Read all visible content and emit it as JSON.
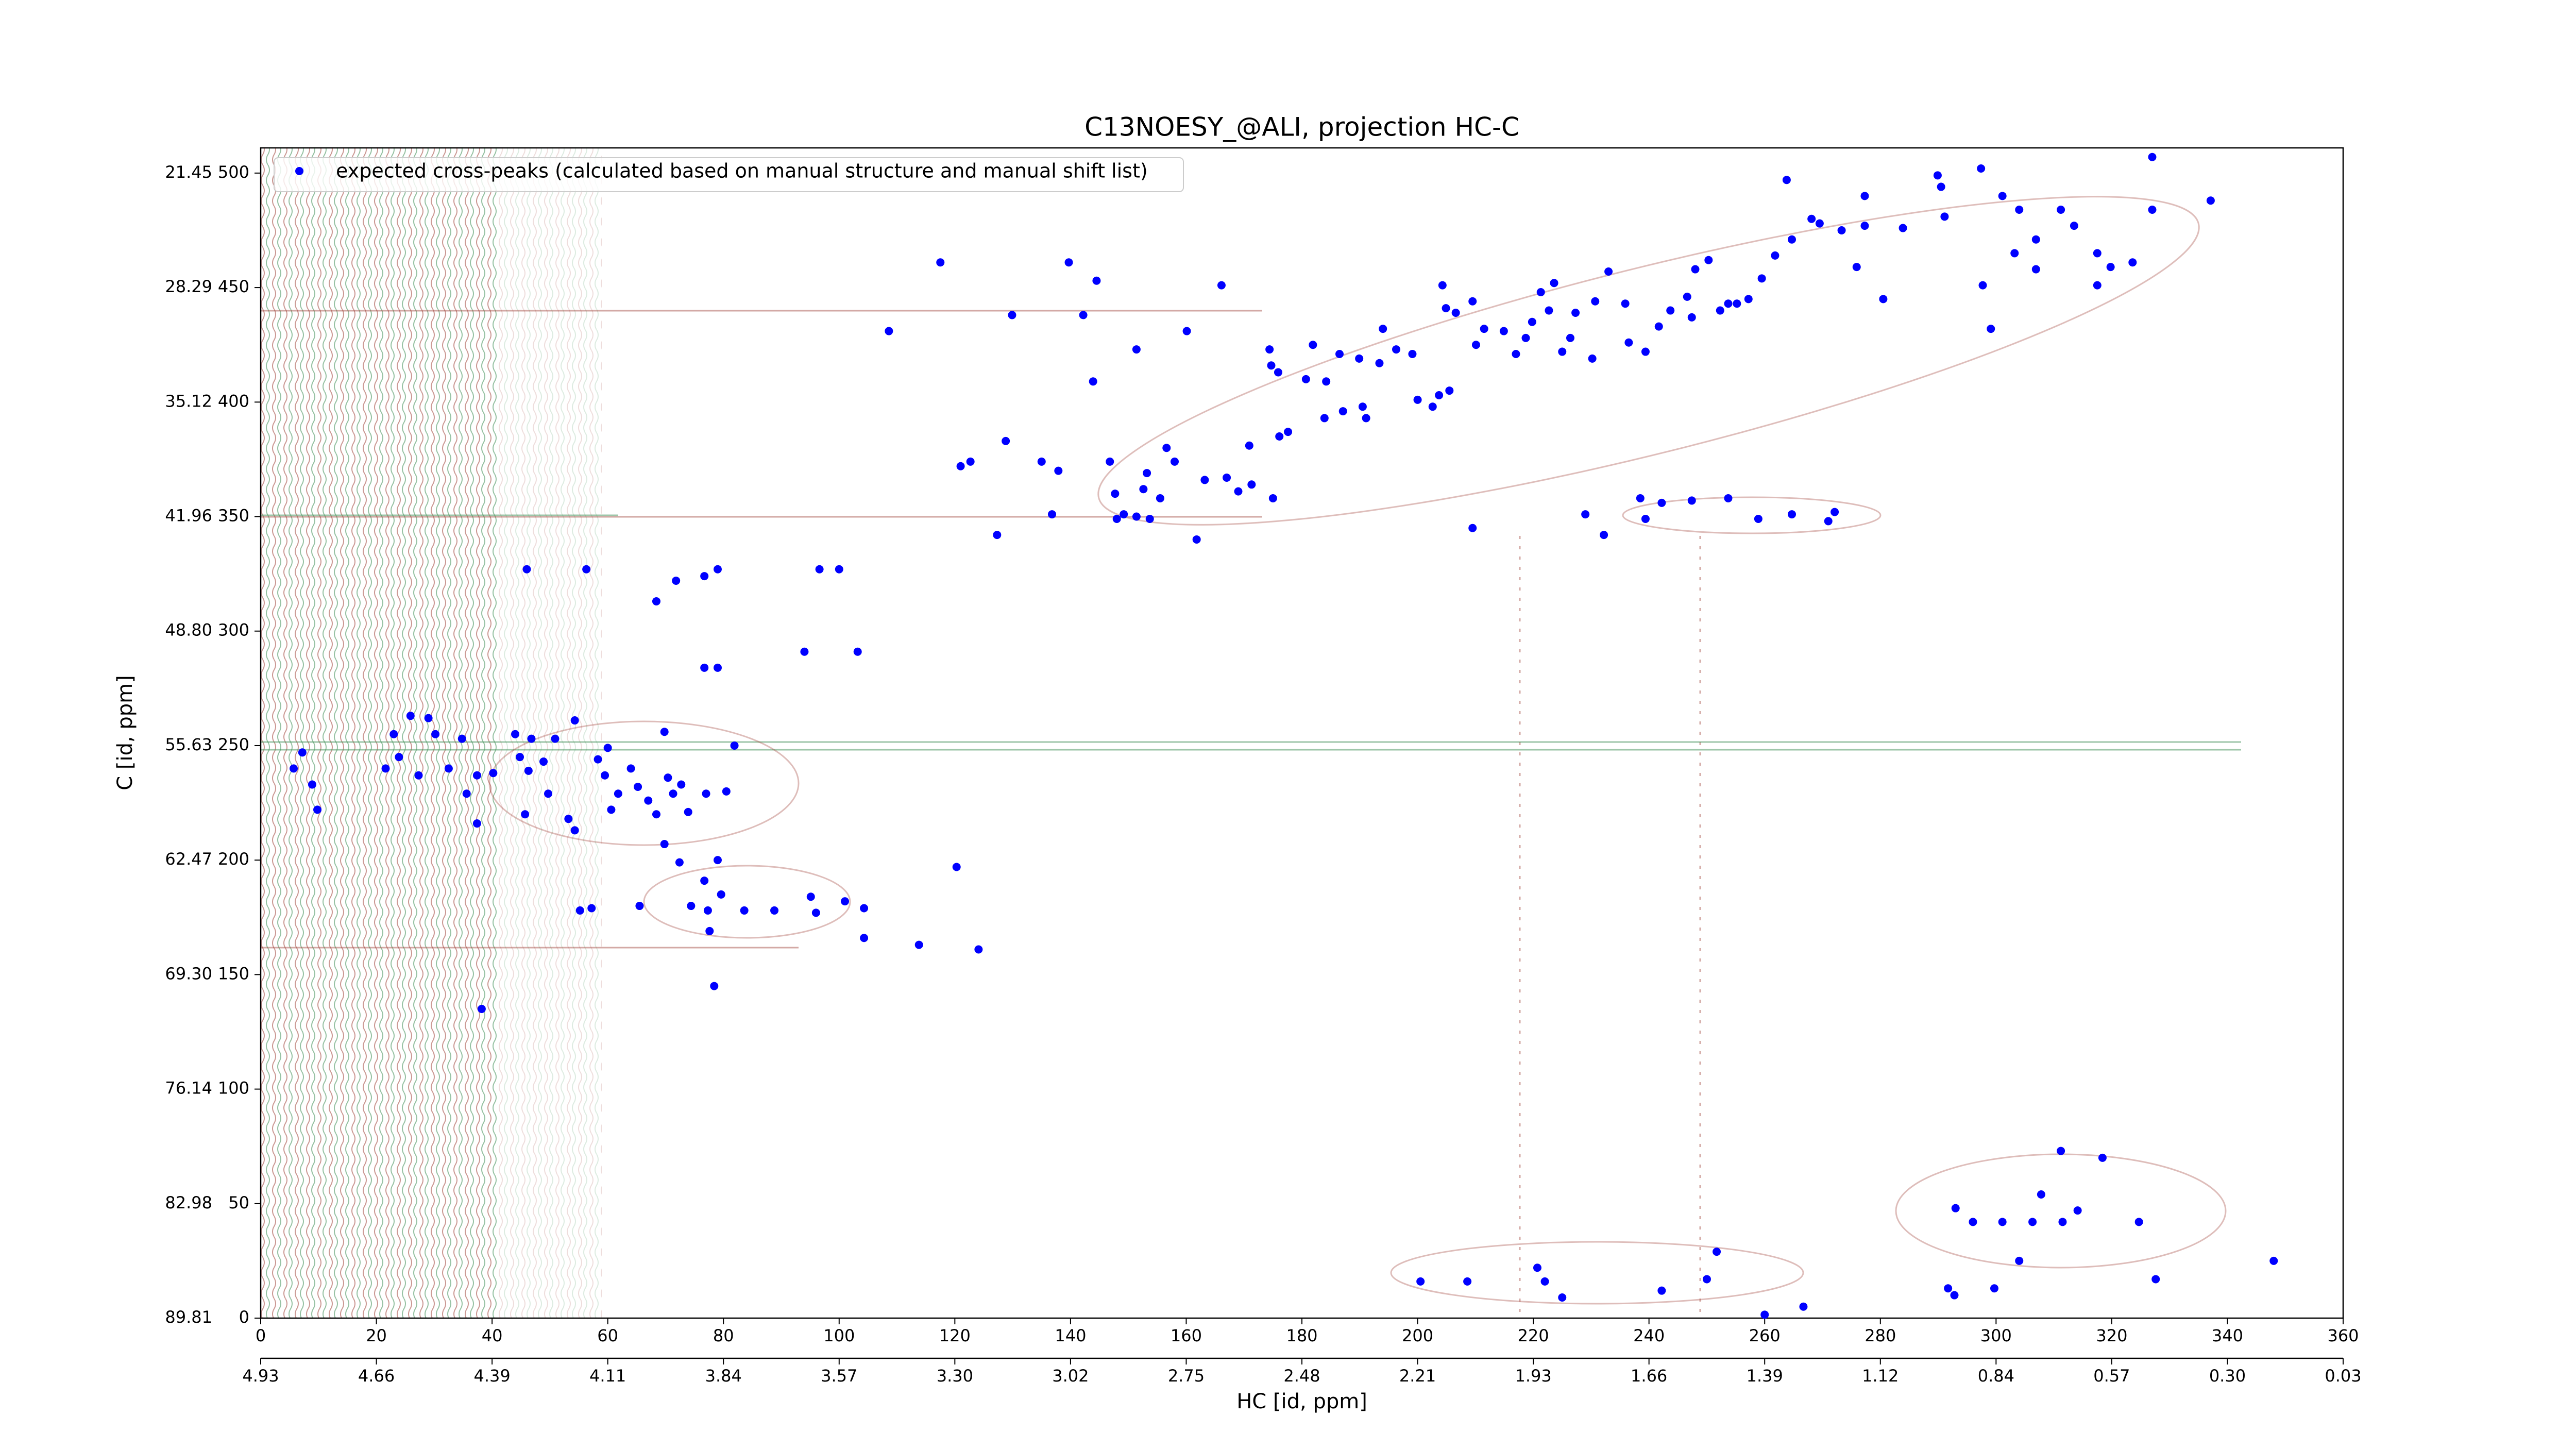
{
  "chart_data": {
    "type": "scatter",
    "title": "C13NOESY_@ALI, projection HC-C",
    "x_label": "HC [id, ppm]",
    "y_label": "C [id, ppm]",
    "xlim": [
      0,
      360
    ],
    "ylim": [
      0,
      511
    ],
    "xticks": [
      0,
      20,
      40,
      60,
      80,
      100,
      120,
      140,
      160,
      180,
      200,
      220,
      240,
      260,
      280,
      300,
      320,
      340,
      360
    ],
    "yticks": [
      0,
      50,
      100,
      150,
      200,
      250,
      300,
      350,
      400,
      450,
      500
    ],
    "x_ppm_ticks": [
      {
        "value": 0,
        "label": "4.93"
      },
      {
        "value": 20,
        "label": "4.66"
      },
      {
        "value": 40,
        "label": "4.39"
      },
      {
        "value": 60,
        "label": "4.11"
      },
      {
        "value": 80,
        "label": "3.84"
      },
      {
        "value": 100,
        "label": "3.57"
      },
      {
        "value": 120,
        "label": "3.30"
      },
      {
        "value": 140,
        "label": "3.02"
      },
      {
        "value": 160,
        "label": "2.75"
      },
      {
        "value": 180,
        "label": "2.48"
      },
      {
        "value": 200,
        "label": "2.21"
      },
      {
        "value": 220,
        "label": "1.93"
      },
      {
        "value": 240,
        "label": "1.66"
      },
      {
        "value": 260,
        "label": "1.39"
      },
      {
        "value": 280,
        "label": "1.12"
      },
      {
        "value": 300,
        "label": "0.84"
      },
      {
        "value": 320,
        "label": "0.57"
      },
      {
        "value": 340,
        "label": "0.30"
      },
      {
        "value": 360,
        "label": "0.03"
      }
    ],
    "y_ppm_ticks": [
      {
        "value": 0,
        "label": "89.81"
      },
      {
        "value": 50,
        "label": "82.98"
      },
      {
        "value": 100,
        "label": "76.14"
      },
      {
        "value": 150,
        "label": "69.30"
      },
      {
        "value": 200,
        "label": "62.47"
      },
      {
        "value": 250,
        "label": "55.63"
      },
      {
        "value": 300,
        "label": "48.80"
      },
      {
        "value": 350,
        "label": "41.96"
      },
      {
        "value": 400,
        "label": "35.12"
      },
      {
        "value": 450,
        "label": "28.29"
      },
      {
        "value": 500,
        "label": "21.45"
      }
    ],
    "legend": "upper left",
    "series": [
      {
        "name": "expected cross-peaks (calculated based on manual structure and manual shift list)",
        "color": "#0000ff",
        "x": [
          7.2,
          5.7,
          8.9,
          9.8,
          23,
          25.9,
          23.9,
          21.6,
          29,
          30.2,
          27.3,
          34.8,
          32.5,
          37.4,
          35.6,
          40.2,
          37.4,
          44,
          46.8,
          44.8,
          46.3,
          49.7,
          45.7,
          54.3,
          50.9,
          58.3,
          59.5,
          61.8,
          60.6,
          64,
          65.2,
          67,
          68.4,
          70.4,
          72.7,
          73.9,
          69.8,
          77,
          80.5,
          81.9,
          53.2,
          54.3,
          48.9,
          60,
          71.3,
          69.8,
          72.4,
          79,
          76.7,
          79.6,
          55.2,
          57.2,
          65.5,
          74.4,
          77.3,
          77.6,
          83.6,
          88.8,
          95.1,
          96,
          101,
          104.3,
          104.3,
          113.8,
          124.1,
          120.3,
          78.4,
          38.2,
          46,
          56.3,
          71.8,
          76.7,
          79,
          68.4,
          96.6,
          100,
          76.7,
          79,
          94,
          103.2,
          108.6,
          117.5,
          121,
          122.7,
          128.8,
          127.3,
          129.9,
          135,
          137.9,
          139.7,
          142.2,
          144.5,
          143.9,
          136.8,
          146.8,
          147.7,
          148,
          149.2,
          151.4,
          153.7,
          155.5,
          156.6,
          158,
          153.2,
          152.6,
          151.4,
          160.1,
          161.8,
          166.1,
          163.2,
          167,
          169,
          171.3,
          175,
          170.9,
          176.1,
          177.6,
          174.4,
          174.7,
          175.9,
          180.7,
          184.2,
          181.9,
          186.5,
          183.9,
          187.1,
          190.5,
          191.1,
          189.9,
          193.4,
          194,
          196.3,
          199.1,
          200,
          202.6,
          203.7,
          205.5,
          204.9,
          204.3,
          206.6,
          209.5,
          211.5,
          210.1,
          214.9,
          217,
          218.7,
          219.8,
          221.3,
          222.7,
          223.6,
          225,
          226.4,
          230.2,
          227.3,
          230.7,
          233,
          235.9,
          236.5,
          239.4,
          241.7,
          243.7,
          246.6,
          248,
          250.3,
          247.4,
          252.3,
          253.7,
          255.2,
          257.2,
          259.5,
          261.8,
          264.7,
          268.1,
          269.5,
          273.3,
          277.3,
          277.3,
          283.9,
          289.9,
          290.5,
          291.1,
          297.4,
          301.1,
          304,
          306.9,
          311.2,
          313.5,
          317.5,
          317.5,
          319.8,
          323.6,
          327,
          327,
          337.1,
          263.8,
          275.9,
          280.5,
          297.7,
          299.1,
          303.2,
          306.9,
          209.5,
          229,
          232.2,
          239.4,
          242.2,
          247.4,
          253.7,
          258.9,
          264.7,
          271,
          272.1,
          238.5,
          200.5,
          208.6,
          220.7,
          222,
          225,
          242.2,
          251.7,
          250,
          260,
          266.7,
          291.7,
          292.8,
          299.7,
          304,
          306.3,
          311.5,
          307.8,
          314.1,
          311.2,
          318.4,
          327.6,
          324.7,
          348,
          301.1,
          296,
          293
        ],
        "values": [
          247,
          240,
          233,
          222,
          255,
          263,
          245,
          240,
          262,
          255,
          237,
          253,
          240,
          237,
          229,
          238,
          216,
          255,
          253,
          245,
          239,
          229,
          220,
          261,
          253,
          244,
          237,
          229,
          222,
          240,
          232,
          226,
          220,
          236,
          233,
          221,
          256,
          229,
          230,
          250,
          218,
          213,
          243,
          249,
          229,
          207,
          199,
          200,
          191,
          185,
          178,
          179,
          180,
          180,
          178,
          169,
          178,
          178,
          184,
          177,
          182,
          179,
          166,
          163,
          161,
          197,
          145,
          135,
          327,
          327,
          322,
          324,
          327,
          313,
          327,
          327,
          284,
          284,
          291,
          291,
          431,
          461,
          372,
          374,
          383,
          342,
          438,
          374,
          370,
          461,
          438,
          453,
          409,
          351,
          374,
          360,
          349,
          351,
          350,
          349,
          358,
          380,
          374,
          369,
          362,
          423,
          431,
          340,
          451,
          366,
          367,
          361,
          364,
          358,
          381,
          385,
          387,
          423,
          416,
          413,
          410,
          409,
          425,
          421,
          393,
          396,
          398,
          393,
          419,
          417,
          432,
          423,
          421,
          401,
          398,
          403,
          405,
          441,
          451,
          439,
          444,
          432,
          425,
          431,
          421,
          428,
          435,
          448,
          440,
          452,
          422,
          428,
          419,
          439,
          444,
          457,
          443,
          426,
          422,
          433,
          440,
          446,
          458,
          462,
          437,
          440,
          443,
          443,
          445,
          454,
          464,
          471,
          480,
          478,
          475,
          490,
          477,
          476,
          499,
          494,
          481,
          502,
          490,
          484,
          471,
          484,
          477,
          465,
          451,
          459,
          461,
          507,
          484,
          488,
          497,
          459,
          445,
          451,
          432,
          465,
          458,
          345,
          351,
          342,
          349,
          356,
          357,
          358,
          349,
          351,
          348,
          352,
          358,
          16,
          16,
          22,
          16,
          9,
          12,
          29,
          17,
          1.5,
          5,
          13,
          10,
          13,
          25,
          42,
          42,
          54,
          47,
          73,
          70,
          17,
          42,
          25,
          42,
          42,
          48
        ]
      }
    ]
  }
}
